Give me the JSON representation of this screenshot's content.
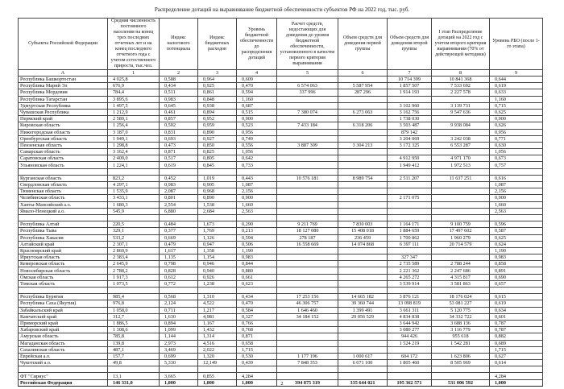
{
  "header": {
    "title": "Распределение дотаций на выравнивание бюджетной обеспеченности субъектов РФ на 2022 год, тыс. руб."
  },
  "table": {
    "columns": [
      "Субъекты Российской Федерации",
      "Средняя численность постоянного населения на конец трех последних отчетных лет и на конец последнего отчетного года с учетом естественного прироста, тыс.чел.",
      "Индекс налогового потенциала",
      "Индекс бюджетных расходов",
      "Уровень бюджетной обеспеченности до распределения дотаций",
      "Расчет средств, недостающих для доведения до уровня бюджетной обеспеченности, установленного в качестве первого критерия выравнивания",
      "Объем средств для доведения первой группы",
      "Объем средств для доведения второй группы",
      "I этап Распределение дотаций на 2022 год с учетом второго критерия выравнивания (70% от действующей методики)",
      "Уровень РБО (после 1-го этапа)"
    ],
    "letters": [
      "А",
      "1",
      "2",
      "3",
      "4",
      "5",
      "6",
      "7",
      "8",
      "9"
    ],
    "groups": [
      [
        [
          "Республика Башкортостан",
          "4 025,8",
          "0,588",
          "0,964",
          "0,609",
          null,
          null,
          "10 714 399",
          "10 841 368",
          "0,644"
        ],
        [
          "Республика Марий Эл",
          "676,9",
          "0,434",
          "0,925",
          "0,470",
          "6 574 063",
          "5 587 954",
          "1 857 507",
          "7 533 692",
          "0,619"
        ],
        [
          "Республика Мордовия",
          "784,4",
          "0,511",
          "0,861",
          "0,594",
          "337 996",
          "287 296",
          "1 914 193",
          "2 227 578",
          "0,633"
        ],
        [
          "Республика Татарстан",
          "3 895,6",
          "0,983",
          "0,848",
          "1,160",
          null,
          null,
          null,
          null,
          "1,160"
        ],
        [
          "Удмуртская Республика",
          "1 497,5",
          "0,645",
          "0,938",
          "0,687",
          null,
          null,
          "3 102 960",
          "3 139 731",
          "0,715"
        ],
        [
          "Чувашская Республика",
          "1 212,9",
          "0,461",
          "0,894",
          "0,515",
          "7 380 074",
          "6 273 063",
          "3 162 756",
          "9 547 636",
          "0,625"
        ],
        [
          "Пермский край",
          "2 589,1",
          "0,857",
          "0,952",
          "0,900",
          null,
          null,
          "1 738 030",
          null,
          "0,900"
        ],
        [
          "Кировская область",
          "1 256,4",
          "0,502",
          "0,959",
          "0,523",
          "7 433 184",
          "6 318 206",
          "3 503 487",
          "9 938 084",
          "0,626"
        ],
        [
          "Нижегородская область",
          "3 187,0",
          "0,831",
          "0,890",
          "0,956",
          null,
          null,
          "879 142",
          null,
          "0,956"
        ],
        [
          "Оренбургская область",
          "1 949,1",
          "0,693",
          "0,927",
          "0,749",
          null,
          null,
          "3 204 069",
          "3 242 038",
          "0,771"
        ],
        [
          "Пензенская область",
          "1 298,8",
          "0,473",
          "0,850",
          "0,556",
          "3 887 309",
          "3 304 213",
          "3 172 325",
          "6 553 287",
          "0,630"
        ],
        [
          "Самарская область",
          "3 162,4",
          "0,871",
          "0,825",
          "1,056",
          null,
          null,
          null,
          null,
          "1,056"
        ],
        [
          "Саратовская область",
          "2 409,0",
          "0,517",
          "0,805",
          "0,642",
          null,
          null,
          "4 912 950",
          "4 971 170",
          "0,673"
        ],
        [
          "Ульяновская область",
          "1 224,1",
          "0,619",
          "0,845",
          "0,733",
          null,
          null,
          "1 949 412",
          "1 972 513",
          "0,757"
        ]
      ],
      [
        [
          "Курганская область",
          "823,2",
          "0,452",
          "1,019",
          "0,443",
          "10 576 181",
          "8 989 754",
          "2 511 207",
          "11 637 251",
          "0,616"
        ],
        [
          "Свердловская область",
          "4 297,1",
          "0,983",
          "0,905",
          "1,087",
          null,
          null,
          null,
          null,
          "1,087"
        ],
        [
          "Тюменская область",
          "1 535,9",
          "2,087",
          "0,968",
          "2,156",
          null,
          null,
          null,
          null,
          "2,156"
        ],
        [
          "Челябинская область",
          "3 433,1",
          "0,801",
          "0,890",
          "0,900",
          null,
          null,
          "2 171 075",
          null,
          "0,900"
        ],
        [
          "Ханты-Мансийский а.о.",
          "1 680,3",
          "2,554",
          "1,538",
          "1,660",
          null,
          null,
          null,
          null,
          "1,660"
        ],
        [
          "Ямало-Ненецкий а.о.",
          "545,9",
          "6,880",
          "2,684",
          "2,563",
          null,
          null,
          null,
          null,
          "2,563"
        ]
      ],
      [
        [
          "Республика Алтай",
          "220,5",
          "0,484",
          "1,673",
          "0,290",
          "9 211 769",
          "7 830 003",
          "1 164 171",
          "9 100 759",
          "0,596"
        ],
        [
          "Республика Тыва",
          "329,1",
          "0,377",
          "1,769",
          "0,213",
          "18 127 080",
          "15 408 018",
          "1 884 659",
          "17 497 602",
          "0,587"
        ],
        [
          "Республика Хакасия",
          "533,2",
          "0,669",
          "1,126",
          "0,594",
          "278 187",
          "236 459",
          "1 700 862",
          "1 960 279",
          "0,625"
        ],
        [
          "Алтайский край",
          "2 307,1",
          "0,479",
          "0,947",
          "0,506",
          "16 558 669",
          "14 074 868",
          "6 397 111",
          "20 714 579",
          "0,624"
        ],
        [
          "Красноярский край",
          "2 860,9",
          "1,617",
          "1,358",
          "1,190",
          null,
          null,
          null,
          null,
          "1,190"
        ],
        [
          "Иркутская область",
          "2 383,4",
          "1,135",
          "1,154",
          "0,983",
          null,
          null,
          "327 347",
          null,
          "0,983"
        ],
        [
          "Кемеровская область",
          "2 645,9",
          "0,798",
          "0,946",
          "0,844",
          null,
          null,
          "2 735 589",
          "2 788 244",
          "0,858"
        ],
        [
          "Новосибирская область",
          "2 788,2",
          "0,828",
          "0,940",
          "0,880",
          null,
          null,
          "2 221 362",
          "2 247 686",
          "0,891"
        ],
        [
          "Омская область",
          "1 917,3",
          "0,612",
          "0,926",
          "0,661",
          null,
          null,
          "4 265 272",
          "4 315 817",
          "0,690"
        ],
        [
          "Томская область",
          "1 073,5",
          "0,772",
          "1,238",
          "0,623",
          null,
          null,
          "3 539 914",
          "3 581 863",
          "0,657"
        ]
      ],
      [
        [
          "Республика Бурятия",
          "985,4",
          "0,568",
          "1,310",
          "0,434",
          "17 253 156",
          "14 665 182",
          "3 876 121",
          "18 176 024",
          "0,615"
        ],
        [
          "Республика Саха (Якутия)",
          "976,8",
          "2,124",
          "4,522",
          "0,470",
          "46 306 757",
          "39 360 744",
          "13 098 819",
          "53 081 227",
          "0,619"
        ],
        [
          "Забайкальский край",
          "1 058,0",
          "0,711",
          "1,217",
          "0,584",
          "1 646 460",
          "1 399 491",
          "3 661 311",
          "5 120 775",
          "0,634"
        ],
        [
          "Камчатский край",
          "312,7",
          "1,630",
          "4,981",
          "0,327",
          "34 184 152",
          "29 056 529",
          "4 834 838",
          "34 332 722",
          "0,601"
        ],
        [
          "Приморский край",
          "1 886,5",
          "0,894",
          "1,167",
          "0,766",
          null,
          null,
          "3 644 942",
          "3 688 136",
          "0,787"
        ],
        [
          "Хабаровский край",
          "1 308,6",
          "1,099",
          "1,432",
          "0,768",
          null,
          null,
          "3 080 277",
          "3 116 779",
          "0,787"
        ],
        [
          "Амурская область",
          "785,8",
          "1,144",
          "1,314",
          "0,871",
          null,
          null,
          "944 426",
          "955 618",
          "0,882"
        ],
        [
          "Магаданская область",
          "139,8",
          "2,973",
          "4,516",
          "0,658",
          null,
          null,
          "1 524 219",
          "1 542 281",
          "0,689"
        ],
        [
          "Сахалинская область",
          "487,1",
          "3,469",
          "2,022",
          "1,715",
          null,
          null,
          null,
          null,
          "1,715"
        ],
        [
          "Еврейская а.о.",
          "157,7",
          "0,699",
          "1,320",
          "0,530",
          "1 177 196",
          "1 000 617",
          "604 172",
          "1 623 806",
          "0,627"
        ],
        [
          "Чукотский а.о.",
          "49,8",
          "5,330",
          "12,149",
          "0,439",
          "7 848 353",
          "6 671 100",
          "1 805 460",
          "8 505 969",
          "0,614"
        ]
      ],
      [
        [
          "ФТ \"Сириус\"",
          "13,1",
          "3,665",
          "0,855",
          "4,284",
          null,
          null,
          null,
          null,
          "4,284"
        ]
      ]
    ],
    "total": [
      "Российская Федерация",
      "146 331,0",
      "1,000",
      "1,000",
      "1,000",
      "394 875 319",
      "335 644 021",
      "195 362 571",
      "531 006 592",
      "1,000"
    ]
  },
  "footer": {
    "page": "2"
  }
}
